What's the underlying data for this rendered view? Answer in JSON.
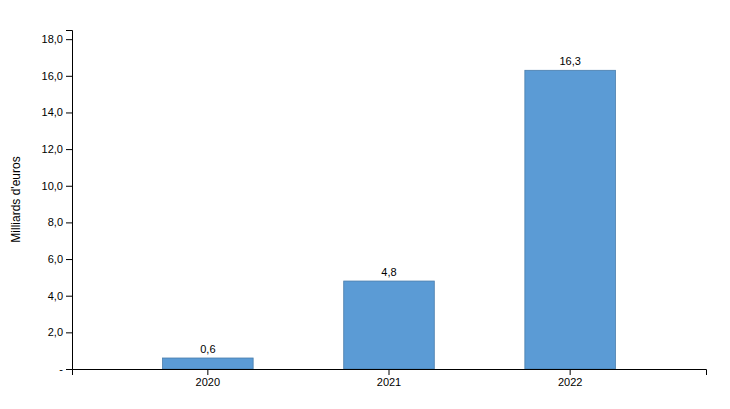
{
  "chart_data": {
    "type": "bar",
    "categories": [
      "2020",
      "2021",
      "2022"
    ],
    "values": [
      0.6,
      4.8,
      16.3
    ],
    "value_labels": [
      "0,6",
      "4,8",
      "16,3"
    ],
    "data_labels": true,
    "color": "#5b9bd5",
    "ylabel": "Milliards d'euros",
    "ylim": [
      0,
      18.5
    ],
    "yticks": [
      {
        "value": 0,
        "label": "-"
      },
      {
        "value": 2,
        "label": "2,0"
      },
      {
        "value": 4,
        "label": "4,0"
      },
      {
        "value": 6,
        "label": "6,0"
      },
      {
        "value": 8,
        "label": "8,0"
      },
      {
        "value": 10,
        "label": "10,0"
      },
      {
        "value": 12,
        "label": "12,0"
      },
      {
        "value": 14,
        "label": "14,0"
      },
      {
        "value": 16,
        "label": "16,0"
      },
      {
        "value": 18,
        "label": "18,0"
      }
    ],
    "grid": false
  }
}
